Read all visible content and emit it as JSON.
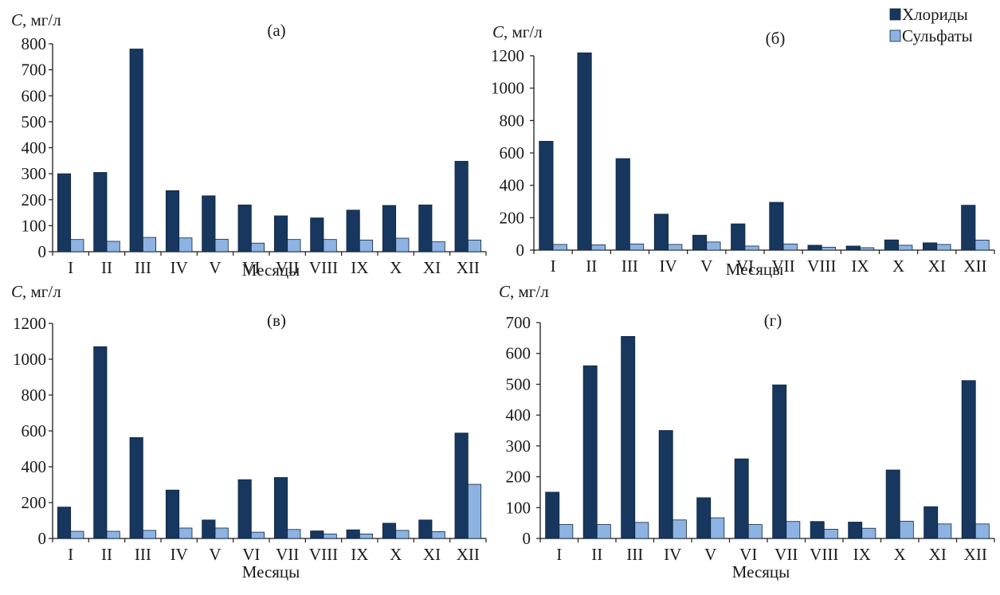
{
  "colors": {
    "chlorides": "#17375e",
    "sulfates": "#8db3e2",
    "axis": "#1a1a1a"
  },
  "legend": {
    "placement": "top-right",
    "items": [
      "Хлориды",
      "Сульфаты"
    ]
  },
  "chart_data": [
    {
      "type": "bar",
      "title": "(а)",
      "ylabel_symbol": "C",
      "ylabel_unit": ", мг/л",
      "xlabel": "Месяцы",
      "ylim": [
        0,
        800
      ],
      "yticks": [
        0,
        100,
        200,
        300,
        400,
        500,
        600,
        700,
        800
      ],
      "grid": false,
      "categories": [
        "I",
        "II",
        "III",
        "IV",
        "V",
        "VI",
        "VII",
        "VIII",
        "IX",
        "X",
        "XI",
        "XII"
      ],
      "series": [
        {
          "name": "Хлориды",
          "values": [
            300,
            305,
            780,
            235,
            215,
            180,
            138,
            130,
            160,
            178,
            180,
            348
          ]
        },
        {
          "name": "Сульфаты",
          "values": [
            47,
            40,
            55,
            53,
            48,
            33,
            47,
            47,
            45,
            52,
            38,
            45
          ]
        }
      ]
    },
    {
      "type": "bar",
      "title": "(б)",
      "ylabel_symbol": "C",
      "ylabel_unit": ", мг/л",
      "xlabel": "Месяцы",
      "ylim": [
        0,
        1200
      ],
      "yticks": [
        0,
        200,
        400,
        600,
        800,
        1000,
        1200
      ],
      "grid": false,
      "categories": [
        "I",
        "II",
        "III",
        "IV",
        "V",
        "VI",
        "VII",
        "VIII",
        "IX",
        "X",
        "XI",
        "XII"
      ],
      "series": [
        {
          "name": "Хлориды",
          "values": [
            672,
            1218,
            565,
            222,
            92,
            162,
            295,
            30,
            25,
            63,
            45,
            277
          ]
        },
        {
          "name": "Сульфаты",
          "values": [
            35,
            33,
            38,
            35,
            50,
            25,
            38,
            18,
            15,
            30,
            35,
            62
          ]
        }
      ]
    },
    {
      "type": "bar",
      "title": "(в)",
      "ylabel_symbol": "C",
      "ylabel_unit": ", мг/л",
      "xlabel": "Месяцы",
      "ylim": [
        0,
        1200
      ],
      "yticks": [
        0,
        200,
        400,
        600,
        800,
        1000,
        1200
      ],
      "grid": false,
      "categories": [
        "I",
        "II",
        "III",
        "IV",
        "V",
        "VI",
        "VII",
        "VIII",
        "IX",
        "X",
        "XI",
        "XII"
      ],
      "series": [
        {
          "name": "Хлориды",
          "values": [
            175,
            1070,
            563,
            270,
            103,
            328,
            340,
            42,
            48,
            85,
            103,
            588
          ]
        },
        {
          "name": "Сульфаты",
          "values": [
            40,
            40,
            45,
            58,
            58,
            35,
            50,
            25,
            25,
            45,
            38,
            302
          ]
        }
      ]
    },
    {
      "type": "bar",
      "title": "(г)",
      "ylabel_symbol": "C",
      "ylabel_unit": ", мг/л",
      "xlabel": "Месяцы",
      "ylim": [
        0,
        700
      ],
      "yticks": [
        0,
        100,
        200,
        300,
        400,
        500,
        600,
        700
      ],
      "grid": false,
      "categories": [
        "I",
        "II",
        "III",
        "IV",
        "V",
        "VI",
        "VII",
        "VIII",
        "IX",
        "X",
        "XI",
        "XII"
      ],
      "series": [
        {
          "name": "Хлориды",
          "values": [
            150,
            560,
            655,
            350,
            132,
            258,
            498,
            55,
            53,
            222,
            103,
            512
          ]
        },
        {
          "name": "Сульфаты",
          "values": [
            45,
            45,
            52,
            60,
            67,
            45,
            55,
            30,
            33,
            56,
            47,
            47
          ]
        }
      ]
    }
  ]
}
